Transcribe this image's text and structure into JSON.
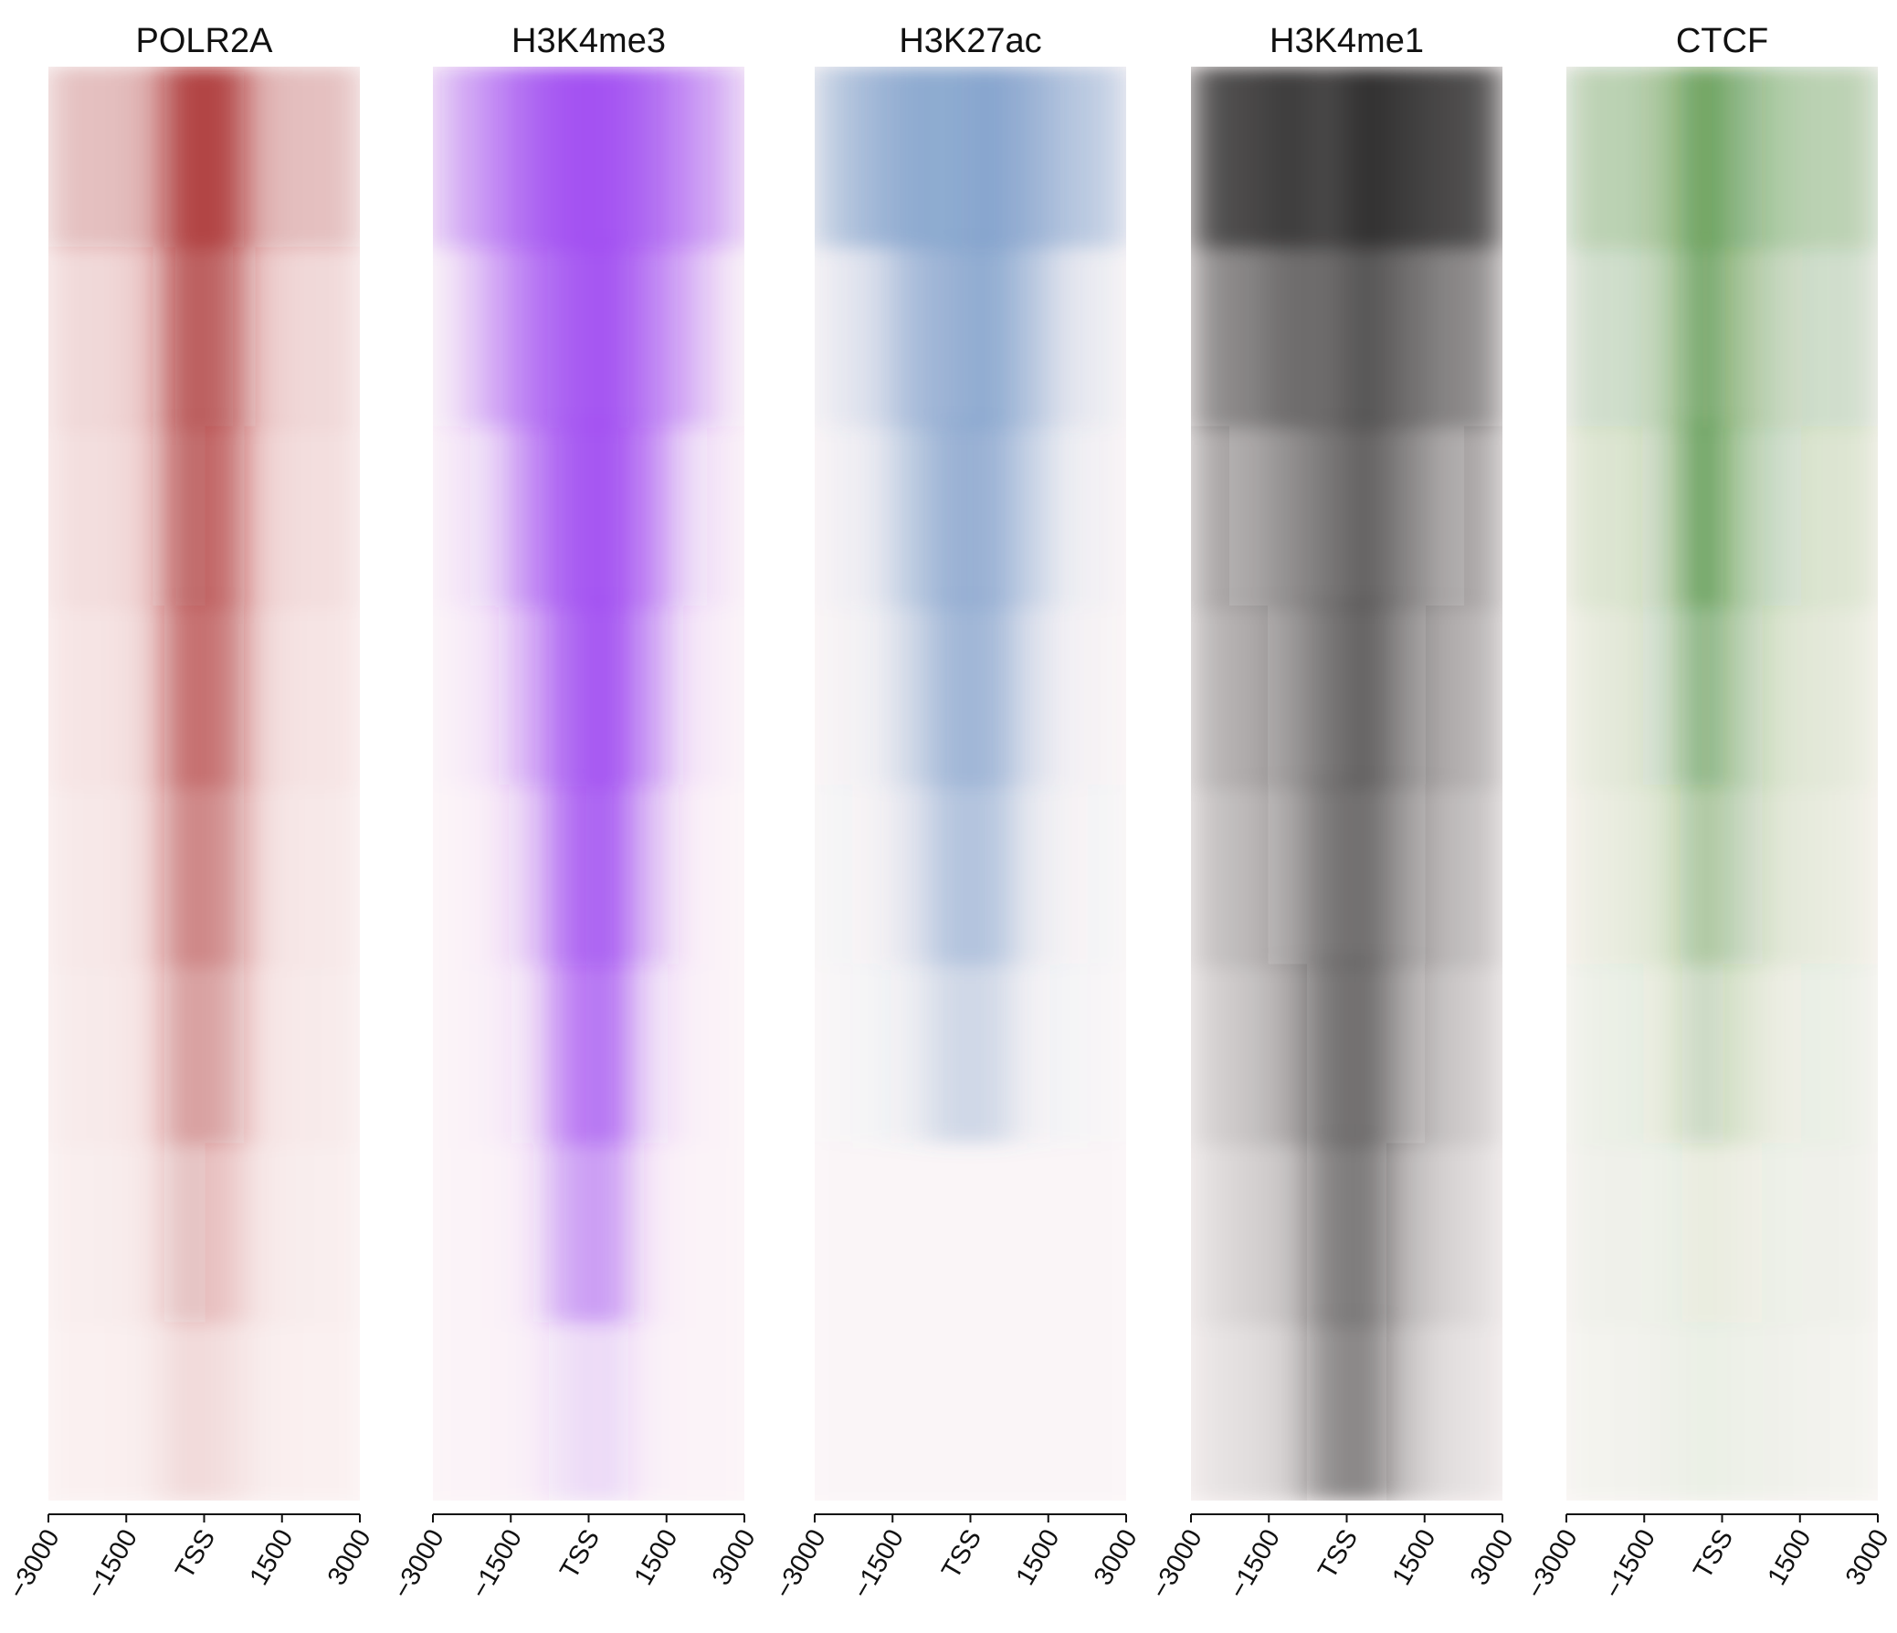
{
  "chart_data": [
    {
      "type": "heatmap",
      "title": "POLR2A",
      "color": "#a01818",
      "xbins": [
        -3000,
        -2250,
        -1500,
        -750,
        0,
        750,
        1500,
        2250,
        3000
      ],
      "values": [
        [
          0.25,
          0.25,
          0.3,
          0.8,
          0.8,
          0.3,
          0.25,
          0.25
        ],
        [
          0.12,
          0.12,
          0.18,
          0.7,
          0.65,
          0.18,
          0.12,
          0.12
        ],
        [
          0.1,
          0.1,
          0.15,
          0.65,
          0.6,
          0.15,
          0.1,
          0.1
        ],
        [
          0.08,
          0.08,
          0.12,
          0.6,
          0.55,
          0.12,
          0.08,
          0.08
        ],
        [
          0.06,
          0.06,
          0.1,
          0.5,
          0.45,
          0.1,
          0.06,
          0.06
        ],
        [
          0.05,
          0.05,
          0.08,
          0.4,
          0.35,
          0.08,
          0.05,
          0.05
        ],
        [
          0.04,
          0.04,
          0.06,
          0.25,
          0.2,
          0.06,
          0.04,
          0.04
        ],
        [
          0.03,
          0.03,
          0.04,
          0.12,
          0.1,
          0.04,
          0.03,
          0.03
        ]
      ],
      "xlim": [
        -3000,
        3000
      ],
      "xticks": [
        {
          "value": -3000,
          "label": "−3000"
        },
        {
          "value": -1500,
          "label": "−1500"
        },
        {
          "value": 0,
          "label": "TSS"
        },
        1500,
        3000
      ]
    },
    {
      "type": "heatmap",
      "title": "H3K4me3",
      "color": "#8f2cf0",
      "xbins": [
        -3000,
        -2250,
        -1500,
        -750,
        0,
        750,
        1500,
        2250,
        3000
      ],
      "values": [
        [
          0.3,
          0.5,
          0.7,
          0.8,
          0.8,
          0.7,
          0.5,
          0.3
        ],
        [
          0.1,
          0.35,
          0.6,
          0.75,
          0.8,
          0.6,
          0.35,
          0.1
        ],
        [
          0.05,
          0.15,
          0.5,
          0.75,
          0.8,
          0.55,
          0.15,
          0.05
        ],
        [
          0.03,
          0.08,
          0.35,
          0.7,
          0.8,
          0.45,
          0.08,
          0.03
        ],
        [
          0.02,
          0.04,
          0.2,
          0.65,
          0.75,
          0.3,
          0.04,
          0.02
        ],
        [
          0.02,
          0.03,
          0.1,
          0.55,
          0.65,
          0.15,
          0.03,
          0.02
        ],
        [
          0.02,
          0.02,
          0.05,
          0.4,
          0.45,
          0.06,
          0.02,
          0.02
        ],
        [
          0.02,
          0.02,
          0.03,
          0.12,
          0.15,
          0.03,
          0.02,
          0.02
        ]
      ],
      "xlim": [
        -3000,
        3000
      ],
      "xticks": [
        {
          "value": -3000,
          "label": "−3000"
        },
        {
          "value": -1500,
          "label": "−1500"
        },
        {
          "value": 0,
          "label": "TSS"
        },
        1500,
        3000
      ]
    },
    {
      "type": "heatmap",
      "title": "H3K27ac",
      "color": "#4a7ab8",
      "xbins": [
        -3000,
        -2250,
        -1500,
        -750,
        0,
        750,
        1500,
        2250,
        3000
      ],
      "values": [
        [
          0.35,
          0.5,
          0.6,
          0.6,
          0.65,
          0.55,
          0.4,
          0.3
        ],
        [
          0.1,
          0.2,
          0.45,
          0.55,
          0.6,
          0.4,
          0.15,
          0.08
        ],
        [
          0.05,
          0.1,
          0.35,
          0.55,
          0.55,
          0.3,
          0.08,
          0.05
        ],
        [
          0.04,
          0.06,
          0.25,
          0.5,
          0.5,
          0.2,
          0.05,
          0.04
        ],
        [
          0.03,
          0.04,
          0.15,
          0.4,
          0.4,
          0.12,
          0.04,
          0.03
        ],
        [
          0.02,
          0.03,
          0.08,
          0.25,
          0.25,
          0.06,
          0.03,
          0.02
        ],
        [
          0.01,
          0.01,
          0.01,
          0.01,
          0.01,
          0.01,
          0.01,
          0.01
        ],
        [
          0.01,
          0.01,
          0.01,
          0.01,
          0.01,
          0.01,
          0.01,
          0.01
        ]
      ],
      "xlim": [
        -3000,
        3000
      ],
      "xticks": [
        {
          "value": -3000,
          "label": "−3000"
        },
        {
          "value": -1500,
          "label": "−1500"
        },
        {
          "value": 0,
          "label": "TSS"
        },
        1500,
        3000
      ]
    },
    {
      "type": "heatmap",
      "title": "H3K4me1",
      "color": "#111111",
      "xbins": [
        -3000,
        -2250,
        -1500,
        -750,
        0,
        750,
        1500,
        2250,
        3000
      ],
      "values": [
        [
          0.7,
          0.75,
          0.8,
          0.75,
          0.85,
          0.8,
          0.75,
          0.7
        ],
        [
          0.45,
          0.5,
          0.6,
          0.6,
          0.7,
          0.6,
          0.5,
          0.45
        ],
        [
          0.3,
          0.35,
          0.45,
          0.55,
          0.65,
          0.5,
          0.35,
          0.3
        ],
        [
          0.25,
          0.3,
          0.4,
          0.55,
          0.65,
          0.45,
          0.3,
          0.25
        ],
        [
          0.2,
          0.25,
          0.35,
          0.55,
          0.6,
          0.4,
          0.25,
          0.2
        ],
        [
          0.15,
          0.2,
          0.3,
          0.55,
          0.6,
          0.35,
          0.2,
          0.15
        ],
        [
          0.1,
          0.15,
          0.2,
          0.5,
          0.55,
          0.25,
          0.15,
          0.1
        ],
        [
          0.08,
          0.1,
          0.15,
          0.45,
          0.5,
          0.2,
          0.1,
          0.08
        ]
      ],
      "xlim": [
        -3000,
        3000
      ],
      "xticks": [
        {
          "value": -3000,
          "label": "−3000"
        },
        {
          "value": -1500,
          "label": "−1500"
        },
        {
          "value": 0,
          "label": "TSS"
        },
        1500,
        3000
      ]
    },
    {
      "type": "heatmap",
      "title": "CTCF",
      "color": "#2e7d1e",
      "xbins": [
        -3000,
        -2250,
        -1500,
        -750,
        0,
        750,
        1500,
        2250,
        3000
      ],
      "values": [
        [
          0.3,
          0.3,
          0.4,
          0.7,
          0.5,
          0.35,
          0.3,
          0.3
        ],
        [
          0.2,
          0.2,
          0.3,
          0.65,
          0.4,
          0.25,
          0.2,
          0.2
        ],
        [
          0.15,
          0.15,
          0.25,
          0.7,
          0.35,
          0.2,
          0.15,
          0.15
        ],
        [
          0.1,
          0.12,
          0.2,
          0.55,
          0.3,
          0.15,
          0.12,
          0.1
        ],
        [
          0.08,
          0.1,
          0.15,
          0.4,
          0.25,
          0.12,
          0.1,
          0.08
        ],
        [
          0.06,
          0.07,
          0.1,
          0.25,
          0.15,
          0.08,
          0.07,
          0.06
        ],
        [
          0.05,
          0.05,
          0.06,
          0.1,
          0.08,
          0.06,
          0.05,
          0.05
        ],
        [
          0.04,
          0.04,
          0.05,
          0.07,
          0.06,
          0.05,
          0.04,
          0.04
        ]
      ],
      "xlim": [
        -3000,
        3000
      ],
      "xticks": [
        {
          "value": -3000,
          "label": "−3000"
        },
        {
          "value": -1500,
          "label": "−1500"
        },
        {
          "value": 0,
          "label": "TSS"
        },
        1500,
        3000
      ]
    }
  ]
}
